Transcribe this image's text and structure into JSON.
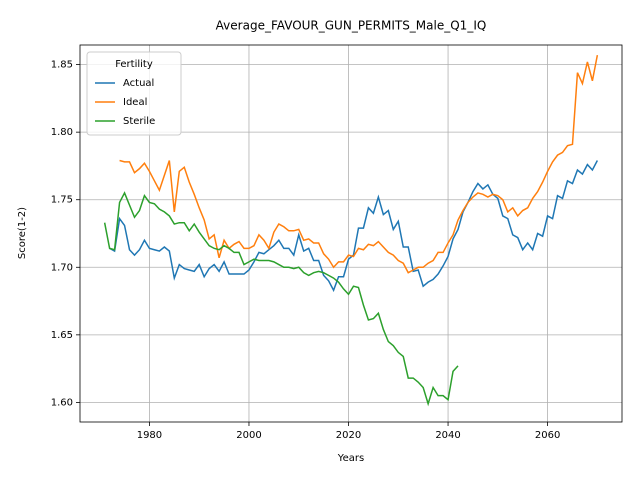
{
  "chart_data": {
    "type": "line",
    "title": "Average_FAVOUR_GUN_PERMITS_Male_Q1_IQ",
    "x_label": "Years",
    "y_label": "Score(1-2)",
    "legend_title": "Fertility",
    "legend": "upper left",
    "grid": true,
    "x": [
      1971,
      1972,
      1973,
      1974,
      1975,
      1976,
      1977,
      1978,
      1979,
      1980,
      1981,
      1982,
      1983,
      1984,
      1985,
      1986,
      1987,
      1988,
      1989,
      1990,
      1991,
      1992,
      1993,
      1994,
      1995,
      1996,
      1997,
      1998,
      1999,
      2000,
      2001,
      2002,
      2003,
      2004,
      2005,
      2006,
      2007,
      2008,
      2009,
      2010,
      2011,
      2012,
      2013,
      2014,
      2015,
      2016,
      2017,
      2018,
      2019,
      2020,
      2021,
      2022,
      2023,
      2024,
      2025,
      2026,
      2027,
      2028,
      2029,
      2030,
      2031,
      2032,
      2033,
      2034,
      2035,
      2036,
      2037,
      2038,
      2039,
      2040,
      2041,
      2042,
      2043,
      2044,
      2045,
      2046,
      2047,
      2048,
      2049,
      2050,
      2051,
      2052,
      2053,
      2054,
      2055,
      2056,
      2057,
      2058,
      2059,
      2060,
      2061,
      2062,
      2063,
      2064,
      2065,
      2066,
      2067,
      2068,
      2069,
      2070
    ],
    "series": [
      {
        "name": "Actual",
        "color": "#1f77b4",
        "values": [
          null,
          1.714,
          1.712,
          1.736,
          1.731,
          1.713,
          1.709,
          1.713,
          1.72,
          1.714,
          1.713,
          1.712,
          1.715,
          1.712,
          1.692,
          1.702,
          1.699,
          1.698,
          1.697,
          1.702,
          1.693,
          1.699,
          1.702,
          1.697,
          1.704,
          1.695,
          1.695,
          1.695,
          1.695,
          1.698,
          1.704,
          1.711,
          1.71,
          1.713,
          1.716,
          1.72,
          1.714,
          1.714,
          1.709,
          1.724,
          1.712,
          1.714,
          1.705,
          1.705,
          1.694,
          1.69,
          1.683,
          1.693,
          1.693,
          1.706,
          1.709,
          1.729,
          1.729,
          1.744,
          1.74,
          1.752,
          1.739,
          1.742,
          1.728,
          1.734,
          1.715,
          1.715,
          1.697,
          1.698,
          1.686,
          1.689,
          1.691,
          1.695,
          1.701,
          1.708,
          1.721,
          1.728,
          1.741,
          1.748,
          1.756,
          1.762,
          1.758,
          1.761,
          1.754,
          1.751,
          1.738,
          1.736,
          1.724,
          1.722,
          1.713,
          1.718,
          1.713,
          1.725,
          1.723,
          1.738,
          1.736,
          1.753,
          1.751,
          1.764,
          1.762,
          1.772,
          1.769,
          1.776,
          1.772,
          1.779
        ]
      },
      {
        "name": "Ideal",
        "color": "#ff7f0e",
        "values": [
          null,
          null,
          null,
          1.779,
          1.778,
          1.778,
          1.77,
          1.773,
          1.777,
          1.771,
          1.764,
          1.757,
          1.768,
          1.779,
          1.741,
          1.771,
          1.774,
          1.763,
          1.754,
          1.744,
          1.735,
          1.721,
          1.724,
          1.707,
          1.72,
          1.714,
          1.717,
          1.719,
          1.714,
          1.714,
          1.716,
          1.724,
          1.72,
          1.714,
          1.726,
          1.732,
          1.73,
          1.727,
          1.727,
          1.728,
          1.72,
          1.721,
          1.718,
          1.718,
          1.71,
          1.706,
          1.7,
          1.704,
          1.704,
          1.709,
          1.708,
          1.714,
          1.713,
          1.717,
          1.716,
          1.719,
          1.715,
          1.711,
          1.709,
          1.705,
          1.703,
          1.696,
          1.698,
          1.7,
          1.7,
          1.703,
          1.705,
          1.711,
          1.711,
          1.718,
          1.724,
          1.735,
          1.742,
          1.748,
          1.752,
          1.755,
          1.754,
          1.752,
          1.754,
          1.753,
          1.75,
          1.741,
          1.744,
          1.738,
          1.742,
          1.744,
          1.751,
          1.756,
          1.763,
          1.771,
          1.778,
          1.783,
          1.785,
          1.79,
          1.791,
          1.844,
          1.836,
          1.852,
          1.838,
          1.857
        ]
      },
      {
        "name": "Sterile",
        "color": "#2ca02c",
        "values": [
          1.733,
          1.714,
          1.713,
          1.748,
          1.755,
          1.746,
          1.737,
          1.742,
          1.753,
          1.748,
          1.747,
          1.743,
          1.741,
          1.738,
          1.732,
          1.733,
          1.733,
          1.727,
          1.732,
          1.726,
          1.721,
          1.716,
          1.714,
          1.713,
          1.716,
          1.714,
          1.711,
          1.711,
          1.702,
          1.704,
          1.706,
          1.705,
          1.705,
          1.705,
          1.704,
          1.702,
          1.7,
          1.7,
          1.699,
          1.7,
          1.696,
          1.694,
          1.696,
          1.697,
          1.696,
          1.694,
          1.692,
          1.689,
          1.684,
          1.68,
          1.686,
          1.685,
          1.672,
          1.661,
          1.662,
          1.666,
          1.654,
          1.645,
          1.642,
          1.637,
          1.634,
          1.618,
          1.618,
          1.615,
          1.611,
          1.599,
          1.611,
          1.605,
          1.605,
          1.602,
          1.623,
          1.627,
          null,
          null,
          null,
          null,
          null,
          null,
          null,
          null,
          null,
          null,
          null,
          null,
          null,
          null,
          null,
          null,
          null,
          null,
          null,
          null,
          null,
          null,
          null,
          null,
          null,
          null,
          null,
          null
        ]
      }
    ],
    "xlim": [
      1966.05,
      2074.95
    ],
    "xticks": [
      1980,
      2000,
      2020,
      2040,
      2060
    ],
    "ylim": [
      1.5855,
      1.8645
    ],
    "yticks": [
      {
        "value": 1.6,
        "label": "1.60"
      },
      {
        "value": 1.65,
        "label": "1.65"
      },
      {
        "value": 1.7,
        "label": "1.70"
      },
      {
        "value": 1.75,
        "label": "1.75"
      },
      {
        "value": 1.8,
        "label": "1.80"
      },
      {
        "value": 1.85,
        "label": "1.85"
      }
    ]
  }
}
